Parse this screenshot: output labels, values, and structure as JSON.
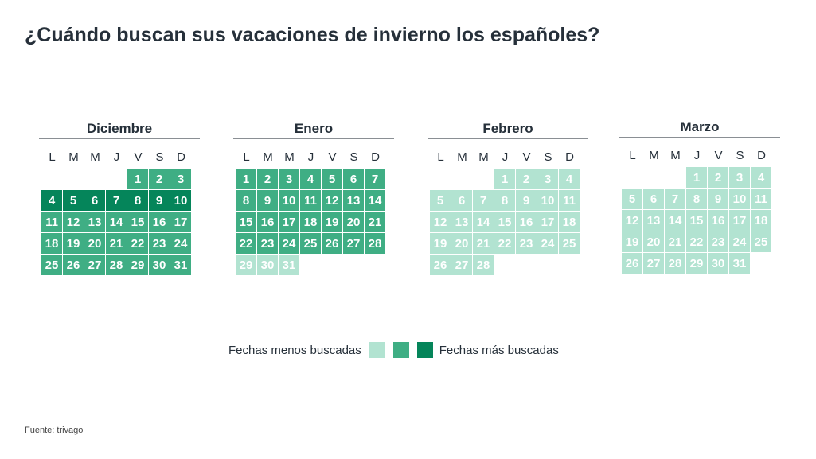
{
  "title": "¿Cuándo buscan sus vacaciones de invierno los españoles?",
  "source": "Fuente: trivago",
  "weekdays": [
    "L",
    "M",
    "M",
    "J",
    "V",
    "S",
    "D"
  ],
  "colors": {
    "low": "#b2e3d1",
    "mid": "#3fae84",
    "high": "#05855a"
  },
  "legend": {
    "low_label": "Fechas menos buscadas",
    "high_label": "Fechas más buscadas"
  },
  "chart_data": {
    "type": "heatmap",
    "title": "¿Cuándo buscan sus vacaciones de invierno los españoles?",
    "scale": [
      "low",
      "mid",
      "high"
    ],
    "months": [
      {
        "name": "Diciembre",
        "first_weekday": 4,
        "days": 31,
        "levels": [
          "mid",
          "mid",
          "mid",
          "high",
          "high",
          "high",
          "high",
          "high",
          "high",
          "high",
          "mid",
          "mid",
          "mid",
          "mid",
          "mid",
          "mid",
          "mid",
          "mid",
          "mid",
          "mid",
          "mid",
          "mid",
          "mid",
          "mid",
          "mid",
          "mid",
          "mid",
          "mid",
          "mid",
          "mid",
          "mid"
        ]
      },
      {
        "name": "Enero",
        "first_weekday": 0,
        "days": 31,
        "levels": [
          "mid",
          "mid",
          "mid",
          "mid",
          "mid",
          "mid",
          "mid",
          "mid",
          "mid",
          "mid",
          "mid",
          "mid",
          "mid",
          "mid",
          "mid",
          "mid",
          "mid",
          "mid",
          "mid",
          "mid",
          "mid",
          "mid",
          "mid",
          "mid",
          "mid",
          "mid",
          "mid",
          "mid",
          "low",
          "low",
          "low"
        ]
      },
      {
        "name": "Febrero",
        "first_weekday": 3,
        "days": 28,
        "levels": [
          "low",
          "low",
          "low",
          "low",
          "low",
          "low",
          "low",
          "low",
          "low",
          "low",
          "low",
          "low",
          "low",
          "low",
          "low",
          "low",
          "low",
          "low",
          "low",
          "low",
          "low",
          "low",
          "low",
          "low",
          "low",
          "low",
          "low",
          "low"
        ]
      },
      {
        "name": "Marzo",
        "first_weekday": 3,
        "days": 31,
        "levels": [
          "low",
          "low",
          "low",
          "low",
          "low",
          "low",
          "low",
          "low",
          "low",
          "low",
          "low",
          "low",
          "low",
          "low",
          "low",
          "low",
          "low",
          "low",
          "low",
          "low",
          "low",
          "low",
          "low",
          "low",
          "low",
          "low",
          "low",
          "low",
          "low",
          "low",
          "low"
        ]
      }
    ]
  }
}
